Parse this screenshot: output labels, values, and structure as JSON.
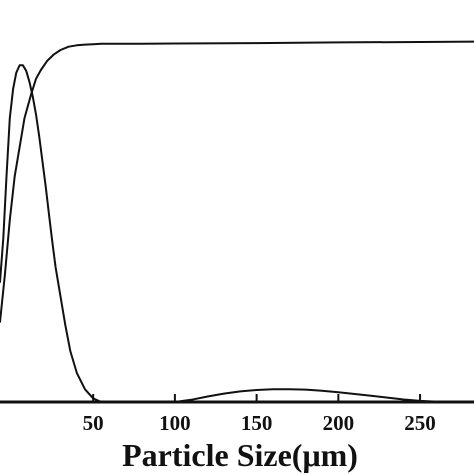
{
  "chart_data": {
    "type": "line",
    "title": "",
    "xlabel": "Particle Size(μm)",
    "ylabel": "",
    "xlim": [
      -7,
      283
    ],
    "ylim": [
      0,
      100
    ],
    "x_ticks": [
      50,
      100,
      150,
      200,
      250
    ],
    "x_tick_labels": [
      "50",
      "100",
      "150",
      "200",
      "250"
    ],
    "grid": false,
    "legend": "none",
    "series": [
      {
        "x": [
          -7,
          -4,
          -1,
          2,
          5,
          8,
          12,
          15,
          18,
          22,
          26,
          30,
          35,
          40,
          45,
          50,
          55,
          60,
          65,
          80,
          100,
          150,
          200,
          250,
          283
        ],
        "y": [
          22,
          35,
          50,
          62,
          70,
          78,
          84.5,
          88.8,
          91.2,
          93.8,
          95.5,
          96.7,
          97.6,
          98.0,
          98.2,
          98.3,
          98.4,
          98.4,
          98.4,
          98.4,
          98.5,
          98.6,
          98.8,
          98.9,
          99.0
        ]
      },
      {
        "x": [
          -7,
          -5,
          -3,
          -1,
          1,
          3,
          5,
          7,
          9,
          11,
          13,
          15,
          17,
          19,
          21,
          23,
          25,
          27,
          30,
          33,
          36,
          40,
          45,
          50,
          55,
          60,
          65,
          70,
          80,
          90,
          100,
          110,
          120,
          130,
          140,
          150,
          160,
          170,
          180,
          190,
          200,
          210,
          220,
          230,
          240,
          250,
          260,
          270,
          283
        ],
        "y": [
          33,
          45,
          62,
          78,
          86,
          90.5,
          92.5,
          92.5,
          91,
          88,
          84,
          79,
          73,
          66,
          59,
          51.5,
          44,
          37,
          29,
          21,
          14,
          8,
          3.5,
          1,
          0,
          0,
          0,
          0,
          0,
          0,
          0,
          0.6,
          1.5,
          2.3,
          2.9,
          3.3,
          3.5,
          3.5,
          3.4,
          3.1,
          2.7,
          2.2,
          1.7,
          1.2,
          0.7,
          0.3,
          0.1,
          0,
          0
        ]
      }
    ]
  }
}
